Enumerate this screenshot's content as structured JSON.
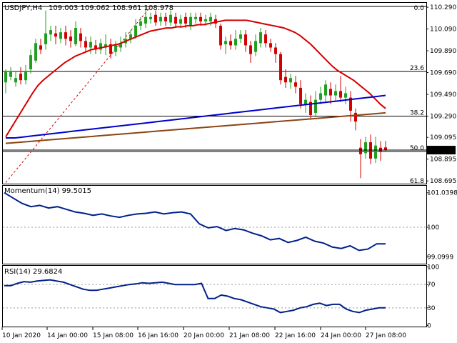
{
  "header": {
    "symbol": "USDJPY,H4",
    "ohlc": "109.003 109.062 108.961 108.978"
  },
  "chart_data": {
    "type": "candlestick",
    "main": {
      "ylim": [
        108.67,
        110.33
      ],
      "price_ticks": [
        "110.290",
        "110.090",
        "109.890",
        "109.690",
        "109.490",
        "109.290",
        "109.095",
        "108.895",
        "108.695"
      ],
      "current_price": "108.978",
      "fib_levels": [
        {
          "label": "0.0",
          "value": 110.296
        },
        {
          "label": "23.6",
          "value": 109.7
        },
        {
          "label": "38.2",
          "value": 109.29
        },
        {
          "label": "50.0",
          "value": 108.965
        },
        {
          "label": "61.8",
          "value": 108.645
        }
      ],
      "candles": [
        {
          "o": 109.6,
          "c": 109.7,
          "h": 109.72,
          "l": 109.5
        },
        {
          "o": 109.65,
          "c": 109.7,
          "h": 109.74,
          "l": 109.62
        },
        {
          "o": 109.6,
          "c": 109.64,
          "h": 109.7,
          "l": 109.56
        },
        {
          "o": 109.68,
          "c": 109.62,
          "h": 109.74,
          "l": 109.58
        },
        {
          "o": 109.62,
          "c": 109.7,
          "h": 109.76,
          "l": 109.58
        },
        {
          "o": 109.72,
          "c": 109.85,
          "h": 109.9,
          "l": 109.68
        },
        {
          "o": 109.8,
          "c": 109.96,
          "h": 110.0,
          "l": 109.78
        },
        {
          "o": 109.94,
          "c": 109.9,
          "h": 110.0,
          "l": 109.86
        },
        {
          "o": 109.95,
          "c": 110.05,
          "h": 110.26,
          "l": 109.9
        },
        {
          "o": 110.04,
          "c": 110.08,
          "h": 110.12,
          "l": 109.98
        },
        {
          "o": 110.05,
          "c": 110.02,
          "h": 110.12,
          "l": 109.95
        },
        {
          "o": 110.0,
          "c": 110.06,
          "h": 110.1,
          "l": 109.96
        },
        {
          "o": 110.06,
          "c": 110.0,
          "h": 110.12,
          "l": 109.94
        },
        {
          "o": 110.02,
          "c": 109.98,
          "h": 110.08,
          "l": 109.92
        },
        {
          "o": 109.95,
          "c": 110.1,
          "h": 110.16,
          "l": 109.93
        },
        {
          "o": 110.05,
          "c": 109.98,
          "h": 110.1,
          "l": 109.92
        },
        {
          "o": 109.98,
          "c": 109.92,
          "h": 110.02,
          "l": 109.88
        },
        {
          "o": 109.92,
          "c": 109.97,
          "h": 110.02,
          "l": 109.86
        },
        {
          "o": 109.94,
          "c": 109.9,
          "h": 109.99,
          "l": 109.86
        },
        {
          "o": 109.9,
          "c": 109.96,
          "h": 110.0,
          "l": 109.86
        },
        {
          "o": 109.92,
          "c": 109.95,
          "h": 110.04,
          "l": 109.85
        },
        {
          "o": 109.95,
          "c": 109.86,
          "h": 110.0,
          "l": 109.82
        },
        {
          "o": 109.88,
          "c": 109.94,
          "h": 109.98,
          "l": 109.84
        },
        {
          "o": 109.92,
          "c": 109.96,
          "h": 110.02,
          "l": 109.88
        },
        {
          "o": 109.96,
          "c": 110.0,
          "h": 110.06,
          "l": 109.92
        },
        {
          "o": 110.0,
          "c": 110.04,
          "h": 110.08,
          "l": 109.96
        },
        {
          "o": 110.02,
          "c": 110.12,
          "h": 110.18,
          "l": 110.0
        },
        {
          "o": 110.12,
          "c": 110.16,
          "h": 110.2,
          "l": 110.08
        },
        {
          "o": 110.14,
          "c": 110.2,
          "h": 110.3,
          "l": 110.1
        },
        {
          "o": 110.18,
          "c": 110.2,
          "h": 110.24,
          "l": 110.14
        },
        {
          "o": 110.22,
          "c": 110.15,
          "h": 110.26,
          "l": 110.12
        },
        {
          "o": 110.16,
          "c": 110.2,
          "h": 110.24,
          "l": 110.12
        },
        {
          "o": 110.2,
          "c": 110.16,
          "h": 110.24,
          "l": 110.12
        },
        {
          "o": 110.15,
          "c": 110.22,
          "h": 110.26,
          "l": 110.12
        },
        {
          "o": 110.2,
          "c": 110.14,
          "h": 110.24,
          "l": 110.1
        },
        {
          "o": 110.14,
          "c": 110.18,
          "h": 110.22,
          "l": 110.1
        },
        {
          "o": 110.2,
          "c": 110.14,
          "h": 110.24,
          "l": 110.1
        },
        {
          "o": 110.12,
          "c": 110.2,
          "h": 110.24,
          "l": 110.08
        },
        {
          "o": 110.18,
          "c": 110.2,
          "h": 110.24,
          "l": 110.14
        },
        {
          "o": 110.2,
          "c": 110.16,
          "h": 110.24,
          "l": 110.12
        },
        {
          "o": 110.16,
          "c": 110.18,
          "h": 110.22,
          "l": 110.12
        },
        {
          "o": 110.16,
          "c": 110.2,
          "h": 110.24,
          "l": 110.12
        },
        {
          "o": 110.18,
          "c": 110.14,
          "h": 110.22,
          "l": 110.1
        },
        {
          "o": 110.12,
          "c": 109.94,
          "h": 110.14,
          "l": 109.9
        },
        {
          "o": 109.95,
          "c": 109.98,
          "h": 110.02,
          "l": 109.86
        },
        {
          "o": 109.98,
          "c": 109.94,
          "h": 110.04,
          "l": 109.9
        },
        {
          "o": 109.94,
          "c": 110.0,
          "h": 110.08,
          "l": 109.9
        },
        {
          "o": 110.0,
          "c": 110.04,
          "h": 110.08,
          "l": 109.96
        },
        {
          "o": 110.04,
          "c": 109.94,
          "h": 110.08,
          "l": 109.88
        },
        {
          "o": 109.94,
          "c": 109.86,
          "h": 109.98,
          "l": 109.78
        },
        {
          "o": 109.88,
          "c": 109.98,
          "h": 110.04,
          "l": 109.84
        },
        {
          "o": 109.96,
          "c": 110.06,
          "h": 110.1,
          "l": 109.92
        },
        {
          "o": 110.04,
          "c": 109.96,
          "h": 110.08,
          "l": 109.92
        },
        {
          "o": 109.96,
          "c": 109.92,
          "h": 110.0,
          "l": 109.88
        },
        {
          "o": 109.92,
          "c": 109.86,
          "h": 109.96,
          "l": 109.78
        },
        {
          "o": 109.86,
          "c": 109.62,
          "h": 109.88,
          "l": 109.58
        },
        {
          "o": 109.65,
          "c": 109.6,
          "h": 109.72,
          "l": 109.55
        },
        {
          "o": 109.6,
          "c": 109.64,
          "h": 109.68,
          "l": 109.54
        },
        {
          "o": 109.6,
          "c": 109.56,
          "h": 109.66,
          "l": 109.5
        },
        {
          "o": 109.55,
          "c": 109.4,
          "h": 109.62,
          "l": 109.36
        },
        {
          "o": 109.4,
          "c": 109.44,
          "h": 109.5,
          "l": 109.32
        },
        {
          "o": 109.42,
          "c": 109.3,
          "h": 109.48,
          "l": 109.26
        },
        {
          "o": 109.32,
          "c": 109.44,
          "h": 109.52,
          "l": 109.28
        },
        {
          "o": 109.44,
          "c": 109.5,
          "h": 109.56,
          "l": 109.4
        },
        {
          "o": 109.48,
          "c": 109.58,
          "h": 109.62,
          "l": 109.42
        },
        {
          "o": 109.54,
          "c": 109.48,
          "h": 109.6,
          "l": 109.4
        },
        {
          "o": 109.48,
          "c": 109.52,
          "h": 109.58,
          "l": 109.42
        },
        {
          "o": 109.52,
          "c": 109.46,
          "h": 109.66,
          "l": 109.42
        },
        {
          "o": 109.46,
          "c": 109.5,
          "h": 109.56,
          "l": 109.4
        },
        {
          "o": 109.46,
          "c": 109.34,
          "h": 109.52,
          "l": 109.24
        },
        {
          "o": 109.32,
          "c": 109.24,
          "h": 109.36,
          "l": 109.16
        },
        {
          "o": 109.0,
          "c": 108.94,
          "h": 109.08,
          "l": 108.72
        },
        {
          "o": 108.95,
          "c": 109.05,
          "h": 109.1,
          "l": 108.9
        },
        {
          "o": 109.05,
          "c": 108.9,
          "h": 109.12,
          "l": 108.85
        },
        {
          "o": 108.9,
          "c": 109.02,
          "h": 109.1,
          "l": 108.86
        },
        {
          "o": 109.0,
          "c": 108.96,
          "h": 109.06,
          "l": 108.88
        },
        {
          "o": 109.003,
          "c": 108.978,
          "h": 109.062,
          "l": 108.961
        }
      ],
      "series": [
        {
          "name": "",
          "color": "#d40000",
          "values": [
            109.1,
            109.18,
            109.26,
            109.34,
            109.42,
            109.5,
            109.57,
            109.62,
            109.66,
            109.7,
            109.74,
            109.78,
            109.81,
            109.84,
            109.86,
            109.88,
            109.9,
            109.91,
            109.92,
            109.93,
            109.94,
            109.95,
            109.97,
            109.99,
            110.01,
            110.03,
            110.05,
            110.07,
            110.08,
            110.09,
            110.1,
            110.1,
            110.11,
            110.11,
            110.12,
            110.12,
            110.13,
            110.13,
            110.14,
            110.15,
            110.16,
            110.17,
            110.17,
            110.17,
            110.17,
            110.17,
            110.16,
            110.15,
            110.14,
            110.13,
            110.12,
            110.11,
            110.1,
            110.08,
            110.06,
            110.03,
            109.99,
            109.95,
            109.9,
            109.85,
            109.8,
            109.75,
            109.71,
            109.68,
            109.65,
            109.62,
            109.58,
            109.54,
            109.5,
            109.45,
            109.4,
            109.36
          ]
        },
        {
          "name": "",
          "color": "#0000cc",
          "values": [
            109.09,
            109.09,
            109.1,
            109.11,
            109.12,
            109.13,
            109.14,
            109.15,
            109.16,
            109.17,
            109.18,
            109.19,
            109.2,
            109.21,
            109.22,
            109.23,
            109.24,
            109.25,
            109.26,
            109.27,
            109.28,
            109.29,
            109.3,
            109.31,
            109.32,
            109.33,
            109.34,
            109.35,
            109.36,
            109.37,
            109.38,
            109.39,
            109.4,
            109.41,
            109.42,
            109.43,
            109.44,
            109.45,
            109.46,
            109.47,
            109.48
          ]
        },
        {
          "name": "",
          "color": "#8b4513",
          "values": [
            109.04,
            109.05,
            109.06,
            109.07,
            109.08,
            109.09,
            109.1,
            109.11,
            109.12,
            109.13,
            109.14,
            109.15,
            109.16,
            109.17,
            109.18,
            109.19,
            109.2,
            109.21,
            109.22,
            109.23,
            109.24,
            109.25,
            109.26,
            109.27,
            109.28,
            109.29,
            109.3,
            109.31,
            109.32
          ]
        }
      ]
    },
    "momentum": {
      "title": "Momentum(14) 99.5015",
      "ticks": [
        "101.0398",
        "100",
        "99.0999"
      ],
      "ylim": [
        98.9,
        101.25
      ],
      "level": 100,
      "values": [
        101.04,
        100.88,
        100.72,
        100.62,
        100.66,
        100.58,
        100.62,
        100.54,
        100.46,
        100.42,
        100.36,
        100.4,
        100.34,
        100.3,
        100.36,
        100.4,
        100.42,
        100.46,
        100.4,
        100.44,
        100.46,
        100.4,
        100.1,
        99.98,
        100.02,
        99.9,
        99.96,
        99.92,
        99.82,
        99.74,
        99.62,
        99.66,
        99.54,
        99.6,
        99.7,
        99.58,
        99.52,
        99.4,
        99.36,
        99.44,
        99.3,
        99.34,
        99.5,
        99.5
      ]
    },
    "rsi": {
      "title": "RSI(14) 29.6824",
      "ticks": [
        "100",
        "70",
        "30",
        "0"
      ],
      "ylim": [
        -2,
        102
      ],
      "levels": [
        70,
        30
      ],
      "values": [
        68,
        68,
        72,
        75,
        74,
        76,
        77,
        78,
        76,
        74,
        70,
        66,
        62,
        60,
        60,
        62,
        64,
        66,
        68,
        70,
        71,
        73,
        72,
        73,
        74,
        72,
        70,
        70,
        70,
        70,
        72,
        46,
        46,
        52,
        50,
        46,
        44,
        40,
        36,
        32,
        30,
        28,
        22,
        24,
        26,
        30,
        32,
        36,
        38,
        34,
        36,
        36,
        28,
        24,
        22,
        26,
        28,
        30,
        30
      ]
    },
    "x_ticks": [
      "10 Jan 2020",
      "14 Jan 00:00",
      "15 Jan 08:00",
      "16 Jan 16:00",
      "20 Jan 00:00",
      "21 Jan 08:00",
      "22 Jan 16:00",
      "24 Jan 00:00",
      "27 Jan 08:00"
    ]
  }
}
